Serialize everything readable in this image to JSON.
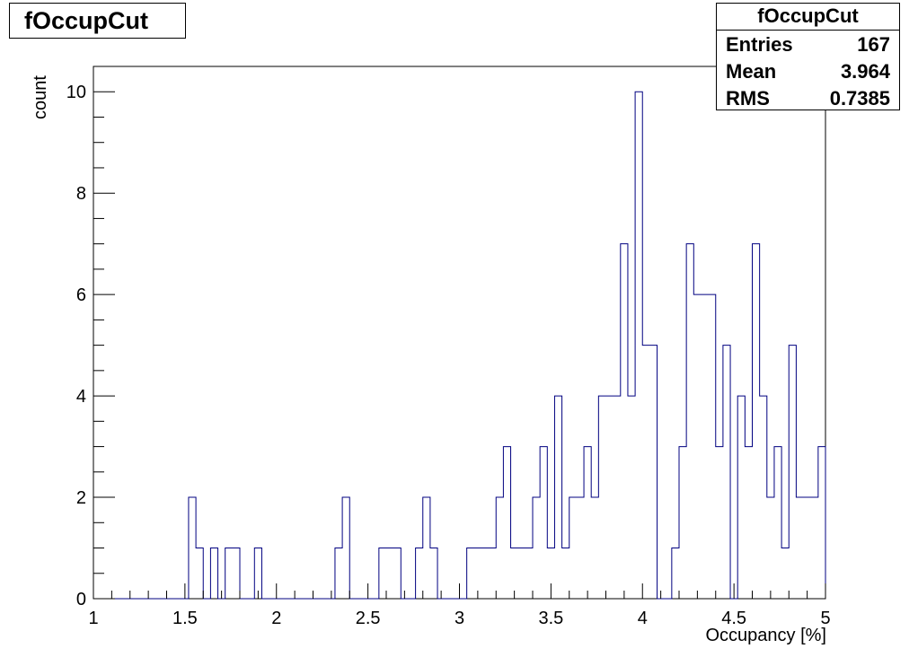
{
  "chart_data": {
    "type": "bar",
    "style": "step-histogram",
    "title": "fOccupCut",
    "xlabel": "Occupancy [%]",
    "ylabel": "count",
    "xlim": [
      1,
      5
    ],
    "ylim": [
      0,
      10.5
    ],
    "x_ticks": [
      "1",
      "1.5",
      "2",
      "2.5",
      "3",
      "3.5",
      "4",
      "4.5",
      "5"
    ],
    "y_ticks": [
      "0",
      "2",
      "4",
      "6",
      "8",
      "10"
    ],
    "bin_width": 0.04,
    "bin_start": 1.0,
    "values": [
      0,
      0,
      0,
      0,
      0,
      0,
      0,
      0,
      0,
      0,
      0,
      0,
      0,
      2,
      1,
      0,
      1,
      0,
      1,
      1,
      0,
      0,
      1,
      0,
      0,
      0,
      0,
      0,
      0,
      0,
      0,
      0,
      0,
      1,
      2,
      0,
      0,
      0,
      0,
      1,
      1,
      1,
      0,
      0,
      1,
      2,
      1,
      0,
      0,
      0,
      0,
      1,
      1,
      1,
      1,
      2,
      3,
      1,
      1,
      1,
      2,
      3,
      1,
      4,
      1,
      2,
      2,
      3,
      2,
      4,
      4,
      4,
      7,
      4,
      10,
      5,
      5,
      0,
      0,
      1,
      3,
      7,
      6,
      6,
      6,
      3,
      5,
      0,
      4,
      3,
      7,
      4,
      2,
      3,
      1,
      5,
      2,
      2,
      2,
      3
    ],
    "line_color": "#000080",
    "grid": false,
    "legend": "none"
  },
  "stats": {
    "title": "fOccupCut",
    "rows": [
      {
        "label": "Entries",
        "value": "167"
      },
      {
        "label": "Mean",
        "value": "3.964"
      },
      {
        "label": "RMS",
        "value": "0.7385"
      }
    ]
  }
}
